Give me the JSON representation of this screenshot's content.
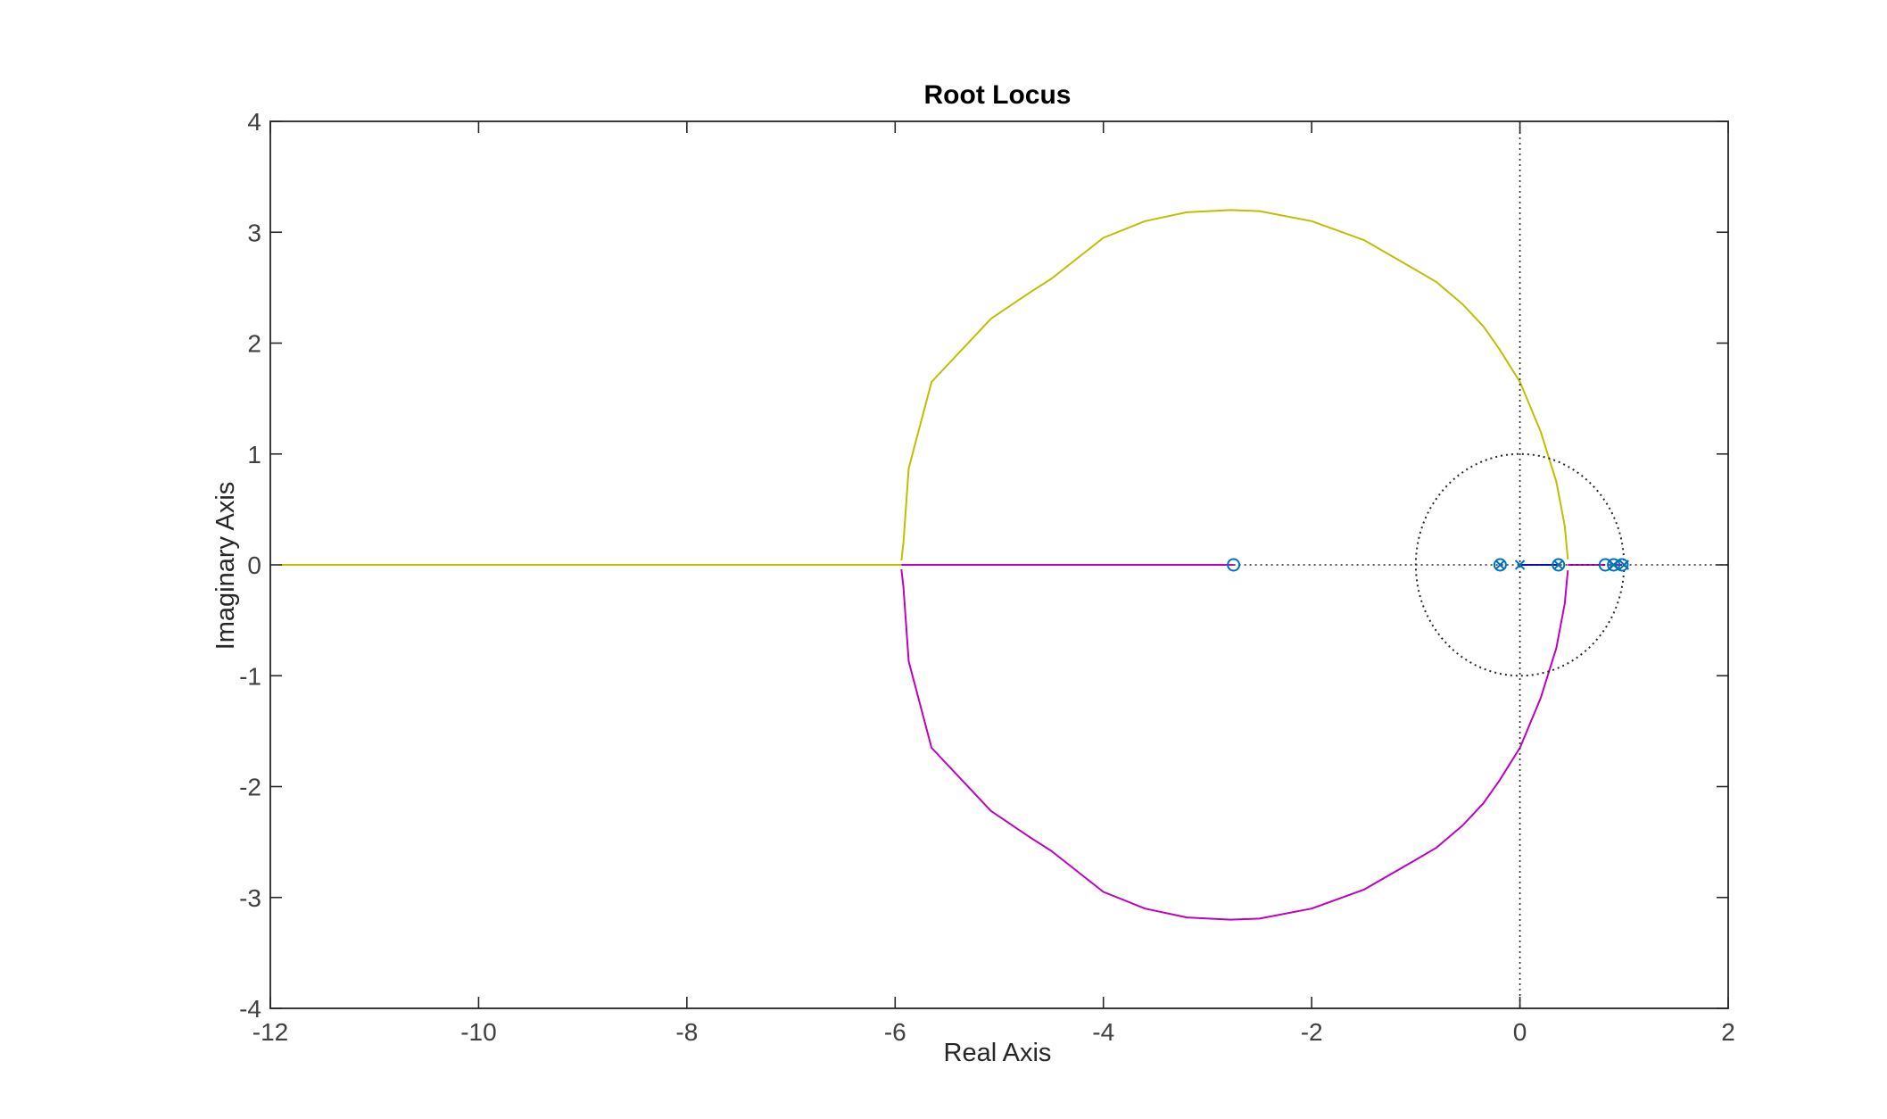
{
  "chart_data": {
    "type": "line",
    "title": "Root Locus",
    "xlabel": "Real Axis",
    "ylabel": "Imaginary Axis",
    "xlim": [
      -12,
      2
    ],
    "ylim": [
      -4,
      4
    ],
    "xticks": [
      -12,
      -10,
      -8,
      -6,
      -4,
      -2,
      0,
      2
    ],
    "yticks": [
      -4,
      -3,
      -2,
      -1,
      0,
      1,
      2,
      3,
      4
    ],
    "xtick_labels": [
      "-12",
      "-10",
      "-8",
      "-6",
      "-4",
      "-2",
      "0",
      "2"
    ],
    "ytick_labels": [
      "-4",
      "-3",
      "-2",
      "-1",
      "0",
      "1",
      "2",
      "3",
      "4"
    ],
    "grid": false,
    "colors": {
      "upper_branch": "#bfbf00",
      "lower_branch": "#bf00bf",
      "real_branches": "#0000ff",
      "markers": "#0072bd",
      "reference": "#262626",
      "axes_box": "#262626"
    },
    "branches": [
      {
        "x": [
          -11.9,
          -10.5,
          -9.0,
          -7.5,
          -6.5,
          -5.94
        ],
        "y": [
          0,
          0,
          0,
          0,
          0,
          0
        ]
      },
      {
        "x": [
          -5.94,
          -5.92,
          -5.87,
          -5.65,
          -5.08,
          -4.7,
          -4.5,
          -4.0,
          -3.6,
          -3.2,
          -2.78,
          -2.5,
          -2.0,
          -1.5,
          -1.0,
          -0.8,
          -0.55,
          -0.35,
          -0.2,
          0.0,
          0.2,
          0.35,
          0.43,
          0.46
        ],
        "y": [
          0.04,
          0.2,
          0.87,
          1.65,
          2.22,
          2.46,
          2.58,
          2.95,
          3.1,
          3.18,
          3.2,
          3.19,
          3.1,
          2.93,
          2.66,
          2.55,
          2.35,
          2.15,
          1.95,
          1.65,
          1.2,
          0.75,
          0.35,
          0.05
        ]
      },
      {
        "x": [
          -5.94,
          -5.92,
          -5.87,
          -5.65,
          -5.08,
          -4.7,
          -4.5,
          -4.0,
          -3.6,
          -3.2,
          -2.78,
          -2.5,
          -2.0,
          -1.5,
          -1.0,
          -0.8,
          -0.55,
          -0.35,
          -0.2,
          0.0,
          0.2,
          0.35,
          0.43,
          0.46
        ],
        "y": [
          -0.04,
          -0.2,
          -0.87,
          -1.65,
          -2.22,
          -2.46,
          -2.58,
          -2.95,
          -3.1,
          -3.18,
          -3.2,
          -3.19,
          -3.1,
          -2.93,
          -2.66,
          -2.55,
          -2.35,
          -2.15,
          -1.95,
          -1.65,
          -1.2,
          -0.75,
          -0.35,
          -0.05
        ]
      },
      {
        "x": [
          -5.94,
          -2.75
        ],
        "y": [
          0,
          0
        ]
      },
      {
        "x": [
          0.0,
          0.37
        ],
        "y": [
          0,
          0
        ]
      },
      {
        "x": [
          0.46,
          0.82
        ],
        "y": [
          0,
          0
        ]
      },
      {
        "x": [
          0.9,
          0.98
        ],
        "y": [
          0,
          0
        ]
      }
    ],
    "zeros": [
      {
        "x": -2.75,
        "y": 0
      },
      {
        "x": -0.19,
        "y": 0
      },
      {
        "x": 0.37,
        "y": 0
      },
      {
        "x": 0.82,
        "y": 0
      },
      {
        "x": 0.9,
        "y": 0
      },
      {
        "x": 0.98,
        "y": 0
      }
    ],
    "poles": [
      {
        "x": -0.19,
        "y": 0
      },
      {
        "x": 0.0,
        "y": 0
      },
      {
        "x": 0.37,
        "y": 0
      },
      {
        "x": 0.9,
        "y": 0
      },
      {
        "x": 1.0,
        "y": 0
      }
    ],
    "unit_circle": {
      "center": [
        0,
        0
      ],
      "radius": 1
    }
  }
}
